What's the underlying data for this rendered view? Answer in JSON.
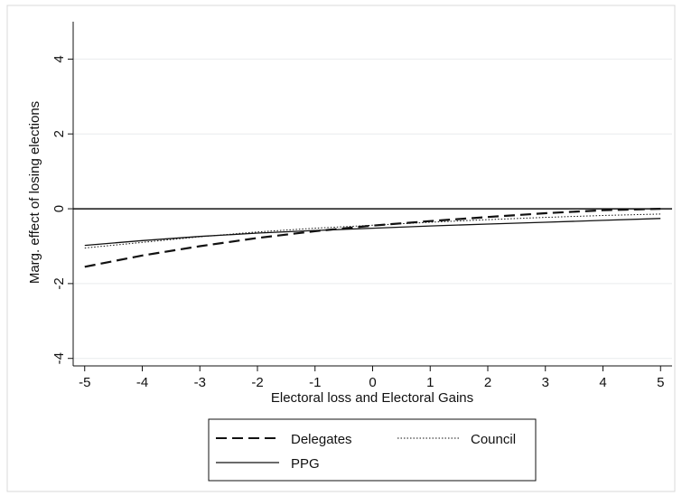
{
  "chart_data": {
    "type": "line",
    "title": "",
    "xlabel": "Electoral loss and Electoral Gains",
    "ylabel": "Marg. effect of losing elections",
    "x_ticks": [
      -5,
      -4,
      -3,
      -2,
      -1,
      0,
      1,
      2,
      3,
      4,
      5
    ],
    "y_ticks": [
      -4,
      -2,
      0,
      2,
      4
    ],
    "xlim": [
      -5.2,
      5.2
    ],
    "ylim": [
      -4.2,
      5.0
    ],
    "grid": "horizontal",
    "reference_line_y": 0,
    "legend_position": "bottom",
    "series": [
      {
        "name": "Delegates",
        "style": "dashed",
        "x": [
          -5,
          -4,
          -3,
          -2,
          -1,
          0,
          1,
          2,
          3,
          4,
          5
        ],
        "y": [
          -1.55,
          -1.25,
          -1.0,
          -0.78,
          -0.6,
          -0.45,
          -0.33,
          -0.22,
          -0.12,
          -0.04,
          0.0
        ]
      },
      {
        "name": "Council",
        "style": "dotted",
        "x": [
          -5,
          -4,
          -3,
          -2,
          -1,
          0,
          1,
          2,
          3,
          4,
          5
        ],
        "y": [
          -1.05,
          -0.9,
          -0.75,
          -0.62,
          -0.52,
          -0.44,
          -0.36,
          -0.29,
          -0.23,
          -0.18,
          -0.14
        ]
      },
      {
        "name": "PPG",
        "style": "solid",
        "x": [
          -5,
          -4,
          -3,
          -2,
          -1,
          0,
          1,
          2,
          3,
          4,
          5
        ],
        "y": [
          -0.98,
          -0.85,
          -0.74,
          -0.65,
          -0.58,
          -0.52,
          -0.46,
          -0.41,
          -0.36,
          -0.31,
          -0.26
        ]
      }
    ]
  },
  "colors": {
    "background": "#ffffff",
    "line": "#111111",
    "grid": "#e9ecee",
    "frame": "#d9d9d9"
  }
}
